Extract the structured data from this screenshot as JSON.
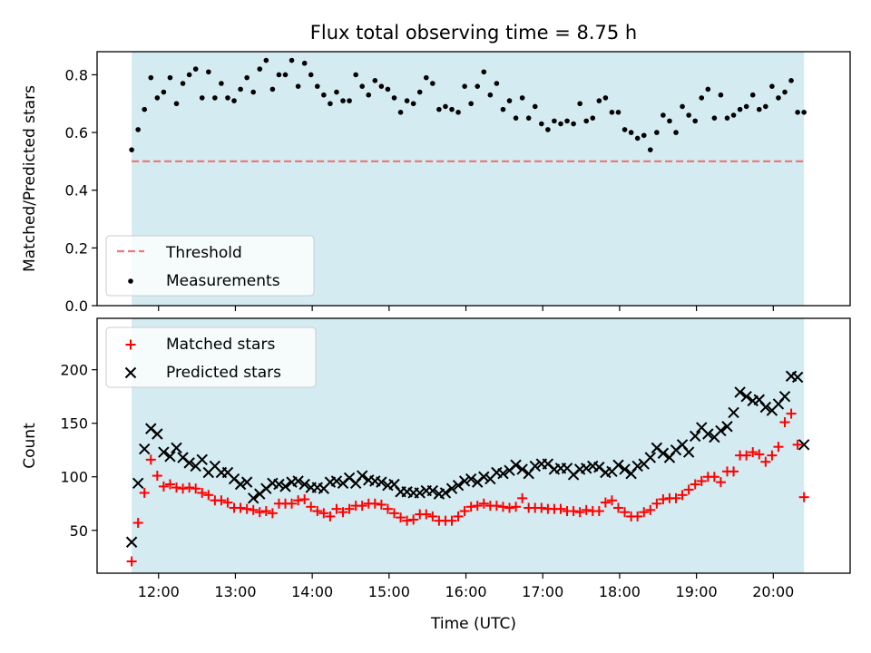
{
  "title": "Flux total observing time = 8.75 h",
  "colors": {
    "observing_band": "#d3ebf1",
    "threshold": "#f07878",
    "measurements": "#000000",
    "matched": "#ff0000",
    "predicted": "#000000"
  },
  "chart_data": [
    {
      "type": "scatter",
      "panel": "top",
      "ylabel": "Matched/Predicted stars",
      "xlabel": "",
      "xlim": [
        "11:12",
        "21:00"
      ],
      "ylim": [
        0,
        0.88
      ],
      "yticks": [
        "0.0",
        "0.2",
        "0.4",
        "0.6",
        "0.8"
      ],
      "xticks": [
        "12:00",
        "13:00",
        "14:00",
        "15:00",
        "16:00",
        "17:00",
        "18:00",
        "19:00",
        "20:00"
      ],
      "observing_band": [
        "11:39",
        "20:24"
      ],
      "threshold": 0.5,
      "legend": {
        "placement": "lower-left",
        "entries": [
          "Threshold",
          "Measurements"
        ]
      },
      "series": [
        {
          "name": "Measurements",
          "x": [
            "11:39",
            "11:44",
            "11:49",
            "11:54",
            "11:59",
            "12:04",
            "12:09",
            "12:14",
            "12:19",
            "12:24",
            "12:29",
            "12:34",
            "12:39",
            "12:44",
            "12:49",
            "12:54",
            "12:59",
            "13:04",
            "13:09",
            "13:14",
            "13:19",
            "13:24",
            "13:29",
            "13:34",
            "13:39",
            "13:44",
            "13:49",
            "13:54",
            "13:59",
            "14:04",
            "14:09",
            "14:14",
            "14:19",
            "14:24",
            "14:29",
            "14:34",
            "14:39",
            "14:44",
            "14:49",
            "14:54",
            "14:59",
            "15:04",
            "15:09",
            "15:14",
            "15:19",
            "15:24",
            "15:29",
            "15:34",
            "15:39",
            "15:44",
            "15:49",
            "15:54",
            "15:59",
            "16:04",
            "16:09",
            "16:14",
            "16:19",
            "16:24",
            "16:29",
            "16:34",
            "16:39",
            "16:44",
            "16:49",
            "16:54",
            "16:59",
            "17:04",
            "17:09",
            "17:14",
            "17:19",
            "17:24",
            "17:29",
            "17:34",
            "17:39",
            "17:44",
            "17:49",
            "17:54",
            "17:59",
            "18:04",
            "18:09",
            "18:14",
            "18:19",
            "18:24",
            "18:29",
            "18:34",
            "18:39",
            "18:44",
            "18:49",
            "18:54",
            "18:59",
            "19:04",
            "19:09",
            "19:14",
            "19:19",
            "19:24",
            "19:29",
            "19:34",
            "19:39",
            "19:44",
            "19:49",
            "19:54",
            "19:59",
            "20:04",
            "20:09",
            "20:14",
            "20:19",
            "20:24"
          ],
          "y": [
            0.54,
            0.61,
            0.68,
            0.79,
            0.72,
            0.74,
            0.79,
            0.7,
            0.77,
            0.8,
            0.82,
            0.72,
            0.81,
            0.72,
            0.77,
            0.72,
            0.71,
            0.75,
            0.79,
            0.74,
            0.82,
            0.85,
            0.75,
            0.8,
            0.8,
            0.85,
            0.76,
            0.84,
            0.8,
            0.76,
            0.73,
            0.7,
            0.74,
            0.71,
            0.71,
            0.8,
            0.76,
            0.73,
            0.78,
            0.76,
            0.75,
            0.72,
            0.67,
            0.71,
            0.7,
            0.74,
            0.79,
            0.77,
            0.68,
            0.69,
            0.68,
            0.67,
            0.76,
            0.7,
            0.76,
            0.81,
            0.73,
            0.77,
            0.68,
            0.71,
            0.65,
            0.72,
            0.65,
            0.69,
            0.63,
            0.61,
            0.64,
            0.63,
            0.64,
            0.63,
            0.7,
            0.64,
            0.65,
            0.71,
            0.72,
            0.67,
            0.67,
            0.61,
            0.6,
            0.58,
            0.59,
            0.54,
            0.6,
            0.66,
            0.64,
            0.6,
            0.69,
            0.66,
            0.64,
            0.72,
            0.75,
            0.65,
            0.73,
            0.65,
            0.66,
            0.68,
            0.69,
            0.73,
            0.68,
            0.69,
            0.76,
            0.72,
            0.74,
            0.78,
            0.67,
            0.67
          ]
        }
      ]
    },
    {
      "type": "scatter",
      "panel": "bottom",
      "ylabel": "Count",
      "xlabel": "Time (UTC)",
      "xlim": [
        "11:12",
        "21:00"
      ],
      "ylim": [
        10,
        248
      ],
      "yticks": [
        "50",
        "100",
        "150",
        "200"
      ],
      "xticks": [
        "12:00",
        "13:00",
        "14:00",
        "15:00",
        "16:00",
        "17:00",
        "18:00",
        "19:00",
        "20:00"
      ],
      "observing_band": [
        "11:39",
        "20:24"
      ],
      "legend": {
        "placement": "upper-left",
        "entries": [
          "Matched stars",
          "Predicted stars"
        ]
      },
      "series": [
        {
          "name": "Matched stars",
          "marker": "plus",
          "x": [
            "11:39",
            "11:44",
            "11:49",
            "11:54",
            "11:59",
            "12:04",
            "12:09",
            "12:14",
            "12:19",
            "12:24",
            "12:29",
            "12:34",
            "12:39",
            "12:44",
            "12:49",
            "12:54",
            "12:59",
            "13:04",
            "13:09",
            "13:14",
            "13:19",
            "13:24",
            "13:29",
            "13:34",
            "13:39",
            "13:44",
            "13:49",
            "13:54",
            "13:59",
            "14:04",
            "14:09",
            "14:14",
            "14:19",
            "14:24",
            "14:29",
            "14:34",
            "14:39",
            "14:44",
            "14:49",
            "14:54",
            "14:59",
            "15:04",
            "15:09",
            "15:14",
            "15:19",
            "15:24",
            "15:29",
            "15:34",
            "15:39",
            "15:44",
            "15:49",
            "15:54",
            "15:59",
            "16:04",
            "16:09",
            "16:14",
            "16:19",
            "16:24",
            "16:29",
            "16:34",
            "16:39",
            "16:44",
            "16:49",
            "16:54",
            "16:59",
            "17:04",
            "17:09",
            "17:14",
            "17:19",
            "17:24",
            "17:29",
            "17:34",
            "17:39",
            "17:44",
            "17:49",
            "17:54",
            "17:59",
            "18:04",
            "18:09",
            "18:14",
            "18:19",
            "18:24",
            "18:29",
            "18:34",
            "18:39",
            "18:44",
            "18:49",
            "18:54",
            "18:59",
            "19:04",
            "19:09",
            "19:14",
            "19:19",
            "19:24",
            "19:29",
            "19:34",
            "19:39",
            "19:44",
            "19:49",
            "19:54",
            "19:59",
            "20:04",
            "20:09",
            "20:14",
            "20:19",
            "20:24"
          ],
          "y": [
            21,
            57,
            85,
            116,
            101,
            91,
            93,
            90,
            89,
            90,
            89,
            85,
            83,
            78,
            78,
            76,
            71,
            71,
            70,
            69,
            67,
            68,
            66,
            75,
            75,
            75,
            78,
            79,
            72,
            68,
            66,
            63,
            70,
            67,
            70,
            73,
            73,
            75,
            75,
            74,
            70,
            66,
            62,
            59,
            60,
            65,
            65,
            63,
            59,
            59,
            59,
            63,
            68,
            72,
            73,
            75,
            73,
            73,
            72,
            71,
            72,
            80,
            71,
            71,
            71,
            70,
            70,
            70,
            68,
            68,
            67,
            69,
            68,
            68,
            76,
            78,
            71,
            67,
            63,
            63,
            67,
            69,
            75,
            79,
            80,
            80,
            83,
            88,
            93,
            96,
            100,
            100,
            95,
            105,
            105,
            120,
            120,
            123,
            121,
            114,
            120,
            128,
            151,
            159,
            130,
            81
          ]
        },
        {
          "name": "Predicted stars",
          "marker": "cross",
          "x": [
            "11:39",
            "11:44",
            "11:49",
            "11:54",
            "11:59",
            "12:04",
            "12:09",
            "12:14",
            "12:19",
            "12:24",
            "12:29",
            "12:34",
            "12:39",
            "12:44",
            "12:49",
            "12:54",
            "12:59",
            "13:04",
            "13:09",
            "13:14",
            "13:19",
            "13:24",
            "13:29",
            "13:34",
            "13:39",
            "13:44",
            "13:49",
            "13:54",
            "13:59",
            "14:04",
            "14:09",
            "14:14",
            "14:19",
            "14:24",
            "14:29",
            "14:34",
            "14:39",
            "14:44",
            "14:49",
            "14:54",
            "14:59",
            "15:04",
            "15:09",
            "15:14",
            "15:19",
            "15:24",
            "15:29",
            "15:34",
            "15:39",
            "15:44",
            "15:49",
            "15:54",
            "15:59",
            "16:04",
            "16:09",
            "16:14",
            "16:19",
            "16:24",
            "16:29",
            "16:34",
            "16:39",
            "16:44",
            "16:49",
            "16:54",
            "16:59",
            "17:04",
            "17:09",
            "17:14",
            "17:19",
            "17:24",
            "17:29",
            "17:34",
            "17:39",
            "17:44",
            "17:49",
            "17:54",
            "17:59",
            "18:04",
            "18:09",
            "18:14",
            "18:19",
            "18:24",
            "18:29",
            "18:34",
            "18:39",
            "18:44",
            "18:49",
            "18:54",
            "18:59",
            "19:04",
            "19:09",
            "19:14",
            "19:19",
            "19:24",
            "19:29",
            "19:34",
            "19:39",
            "19:44",
            "19:49",
            "19:54",
            "19:59",
            "20:04",
            "20:09",
            "20:14",
            "20:19",
            "20:24"
          ],
          "y": [
            39,
            94,
            126,
            145,
            140,
            123,
            119,
            127,
            118,
            113,
            110,
            116,
            104,
            110,
            104,
            104,
            98,
            93,
            95,
            80,
            84,
            89,
            94,
            93,
            91,
            95,
            96,
            93,
            90,
            90,
            89,
            95,
            96,
            94,
            99,
            94,
            101,
            97,
            96,
            95,
            92,
            93,
            86,
            86,
            85,
            85,
            87,
            87,
            84,
            85,
            89,
            92,
            96,
            98,
            95,
            100,
            98,
            104,
            103,
            106,
            111,
            107,
            103,
            110,
            112,
            112,
            107,
            108,
            108,
            102,
            107,
            108,
            110,
            109,
            104,
            105,
            111,
            107,
            103,
            110,
            112,
            118,
            127,
            122,
            118,
            125,
            130,
            123,
            138,
            146,
            140,
            137,
            143,
            147,
            160,
            179,
            175,
            171,
            172,
            165,
            162,
            168,
            175,
            194,
            193,
            130
          ]
        }
      ]
    }
  ]
}
